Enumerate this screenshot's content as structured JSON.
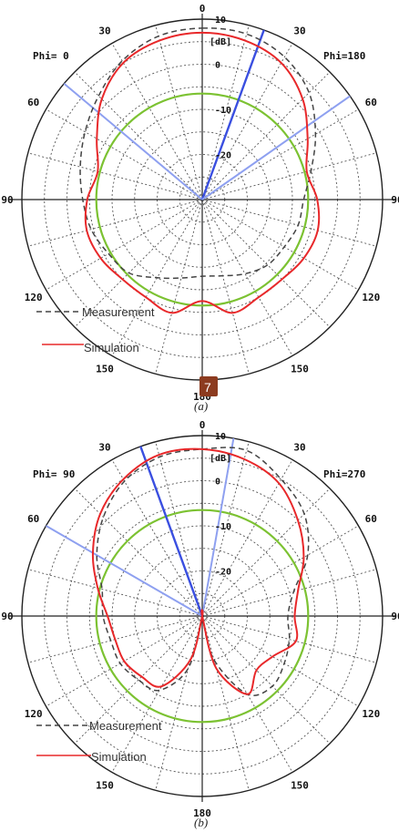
{
  "chart_data": [
    {
      "type": "polar",
      "caption": "(a)",
      "unit_label": "[dB]",
      "phi_left": "Phi= 0",
      "phi_right": "Phi=180",
      "r_range": [
        -30,
        10
      ],
      "r_ticks": [
        "10",
        "0",
        "-10",
        "-20"
      ],
      "angle_ticks": [
        "0",
        "30",
        "60",
        "90",
        "120",
        "150",
        "180",
        "150",
        "120",
        "90",
        "60",
        "30"
      ],
      "grid": true,
      "legend_position": "bottom-left",
      "reference_circle_db": -6.5,
      "beam_lines_deg": [
        -50,
        20,
        55
      ],
      "series": [
        {
          "name": "Measurement",
          "style": "dashed",
          "color": "#444444",
          "points": [
            [
              0,
              8
            ],
            [
              15,
              8
            ],
            [
              30,
              6.5
            ],
            [
              45,
              3.5
            ],
            [
              60,
              -1
            ],
            [
              75,
              -5
            ],
            [
              90,
              -7.5
            ],
            [
              105,
              -8
            ],
            [
              120,
              -9
            ],
            [
              135,
              -9.5
            ],
            [
              150,
              -11
            ],
            [
              165,
              -12.5
            ],
            [
              180,
              -13
            ],
            [
              195,
              -12
            ],
            [
              210,
              -10
            ],
            [
              225,
              -7
            ],
            [
              240,
              -6
            ],
            [
              255,
              -4.5
            ],
            [
              270,
              -3.5
            ],
            [
              285,
              -2
            ],
            [
              300,
              0
            ],
            [
              315,
              2.5
            ],
            [
              330,
              5.5
            ],
            [
              345,
              7.5
            ]
          ]
        },
        {
          "name": "Simulation",
          "style": "solid",
          "color": "#e8282a",
          "points": [
            [
              0,
              7
            ],
            [
              15,
              6.5
            ],
            [
              30,
              5
            ],
            [
              45,
              1.5
            ],
            [
              60,
              -3
            ],
            [
              75,
              -6
            ],
            [
              90,
              -4.5
            ],
            [
              105,
              -3.5
            ],
            [
              120,
              -4
            ],
            [
              135,
              -5
            ],
            [
              150,
              -5
            ],
            [
              165,
              -4
            ],
            [
              180,
              -7.5
            ],
            [
              195,
              -4
            ],
            [
              210,
              -5
            ],
            [
              225,
              -5
            ],
            [
              240,
              -4
            ],
            [
              255,
              -3.5
            ],
            [
              270,
              -4.5
            ],
            [
              285,
              -6
            ],
            [
              300,
              -3
            ],
            [
              315,
              1.5
            ],
            [
              330,
              5
            ],
            [
              345,
              6.5
            ]
          ]
        }
      ],
      "badge": "7"
    },
    {
      "type": "polar",
      "caption": "(b)",
      "unit_label": "[dB]",
      "phi_left": "Phi= 90",
      "phi_right": "Phi=270",
      "r_range": [
        -30,
        10
      ],
      "r_ticks": [
        "10",
        "0",
        "-10",
        "-20"
      ],
      "angle_ticks": [
        "0",
        "30",
        "60",
        "90",
        "120",
        "150",
        "180",
        "150",
        "120",
        "90",
        "60",
        "30"
      ],
      "grid": true,
      "legend_position": "bottom-left",
      "reference_circle_db": -6.5,
      "beam_lines_deg": [
        -60,
        -20,
        10
      ],
      "series": [
        {
          "name": "Measurement",
          "style": "dashed",
          "color": "#444444",
          "points": [
            [
              0,
              7
            ],
            [
              15,
              8
            ],
            [
              30,
              5
            ],
            [
              45,
              2
            ],
            [
              60,
              -3
            ],
            [
              75,
              -9
            ],
            [
              90,
              -11
            ],
            [
              105,
              -10
            ],
            [
              120,
              -9
            ],
            [
              135,
              -8
            ],
            [
              150,
              -10
            ],
            [
              165,
              -20
            ],
            [
              175,
              -30
            ],
            [
              185,
              -30
            ],
            [
              195,
              -18
            ],
            [
              210,
              -11
            ],
            [
              225,
              -10
            ],
            [
              240,
              -9
            ],
            [
              255,
              -9
            ],
            [
              270,
              -8
            ],
            [
              285,
              -7
            ],
            [
              300,
              -3
            ],
            [
              315,
              1
            ],
            [
              330,
              4.5
            ],
            [
              345,
              6.5
            ]
          ]
        },
        {
          "name": "Simulation",
          "style": "solid",
          "color": "#e8282a",
          "points": [
            [
              0,
              7
            ],
            [
              15,
              6
            ],
            [
              30,
              4
            ],
            [
              45,
              0
            ],
            [
              60,
              -4
            ],
            [
              75,
              -8
            ],
            [
              90,
              -9.5
            ],
            [
              105,
              -8.5
            ],
            [
              120,
              -12
            ],
            [
              135,
              -13
            ],
            [
              150,
              -10
            ],
            [
              165,
              -18
            ],
            [
              175,
              -30
            ],
            [
              185,
              -30
            ],
            [
              195,
              -20
            ],
            [
              210,
              -12
            ],
            [
              225,
              -11
            ],
            [
              240,
              -10
            ],
            [
              255,
              -10
            ],
            [
              270,
              -9
            ],
            [
              285,
              -6
            ],
            [
              300,
              -2
            ],
            [
              315,
              2
            ],
            [
              330,
              5
            ],
            [
              345,
              7
            ]
          ]
        }
      ]
    }
  ]
}
